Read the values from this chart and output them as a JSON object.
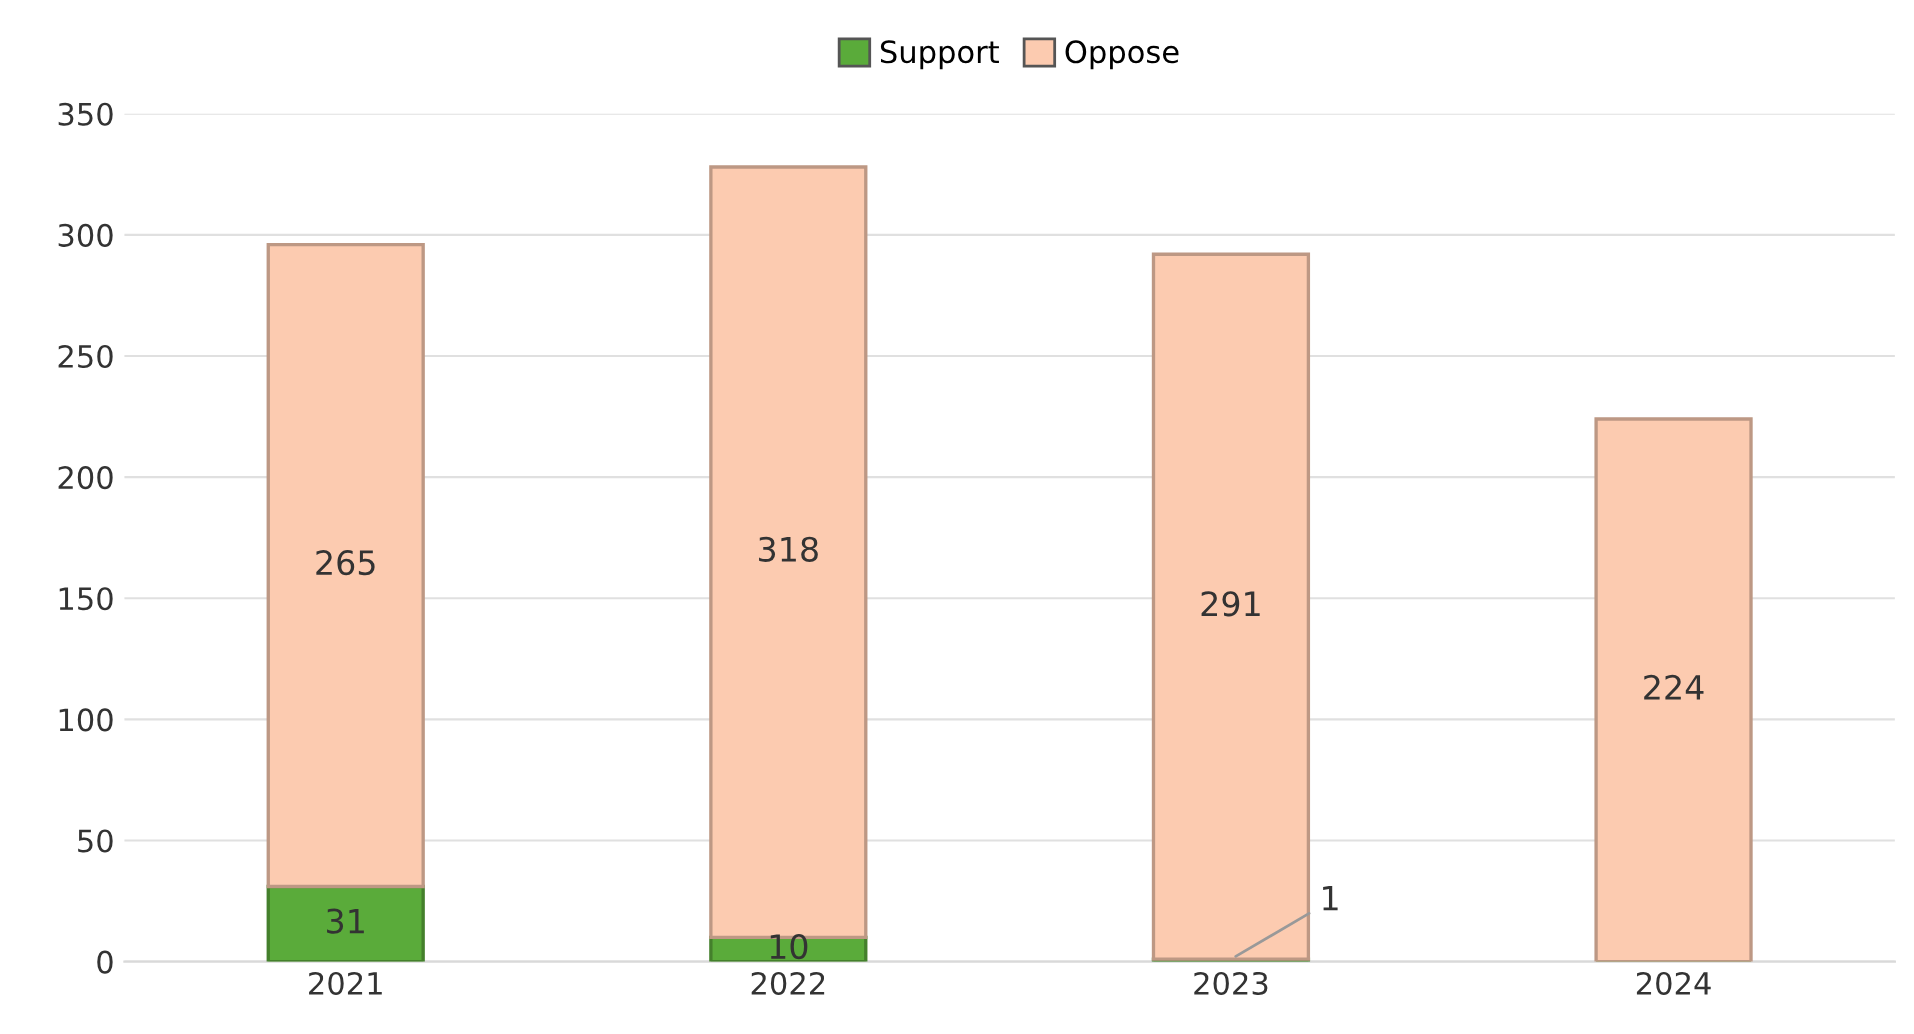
{
  "chart_data": {
    "type": "bar",
    "stacked": true,
    "categories": [
      "2021",
      "2022",
      "2023",
      "2024"
    ],
    "series": [
      {
        "name": "Support",
        "color": "#5aab3a",
        "values": [
          31,
          10,
          1,
          0
        ],
        "value_labels": [
          "31",
          "10",
          "1",
          null
        ]
      },
      {
        "name": "Oppose",
        "color": "#fccbb0",
        "values": [
          265,
          318,
          291,
          224
        ],
        "value_labels": [
          "265",
          "318",
          "291",
          "224"
        ]
      }
    ],
    "ylim": [
      0,
      350
    ],
    "yticks": [
      0,
      50,
      100,
      150,
      200,
      250,
      300,
      350
    ],
    "grid": "y",
    "legend": "top"
  }
}
